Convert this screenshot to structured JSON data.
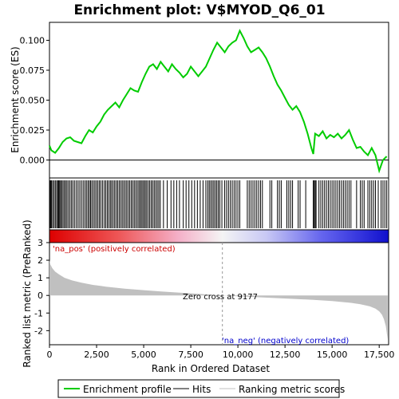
{
  "chart_data": {
    "type": "line",
    "title": "Enrichment plot: V$MYOD_Q6_01",
    "xlabel": "Rank in Ordered Dataset",
    "xlim": [
      0,
      18000
    ],
    "x_ticks": [
      0,
      2500,
      5000,
      7500,
      10000,
      12500,
      15000,
      17500
    ],
    "x_tick_labels": [
      "0",
      "2,500",
      "5,000",
      "7,500",
      "10,000",
      "12,500",
      "15,000",
      "17,500"
    ],
    "es_panel": {
      "ylabel": "Enrichment score (ES)",
      "ylim": [
        -0.015,
        0.115
      ],
      "y_ticks": [
        0.0,
        0.025,
        0.05,
        0.075,
        0.1
      ],
      "y_tick_labels": [
        "0.000",
        "0.025",
        "0.050",
        "0.075",
        "0.100"
      ],
      "series": [
        {
          "name": "Enrichment profile",
          "color": "#00cc00",
          "x": [
            0,
            100,
            300,
            500,
            700,
            900,
            1100,
            1300,
            1500,
            1700,
            1900,
            2100,
            2300,
            2500,
            2700,
            2900,
            3100,
            3300,
            3500,
            3700,
            3900,
            4100,
            4300,
            4500,
            4700,
            4900,
            5100,
            5300,
            5500,
            5700,
            5900,
            6100,
            6300,
            6500,
            6700,
            6900,
            7100,
            7300,
            7500,
            7700,
            7900,
            8100,
            8300,
            8500,
            8700,
            8900,
            9100,
            9300,
            9500,
            9700,
            9900,
            10100,
            10300,
            10500,
            10700,
            10900,
            11100,
            11300,
            11500,
            11700,
            11900,
            12100,
            12300,
            12500,
            12700,
            12900,
            13100,
            13300,
            13500,
            13700,
            13900,
            14000,
            14100,
            14300,
            14500,
            14700,
            14900,
            15100,
            15300,
            15500,
            15700,
            15900,
            16100,
            16300,
            16500,
            16700,
            16900,
            17100,
            17300,
            17500,
            17700,
            17900
          ],
          "y": [
            0.012,
            0.008,
            0.006,
            0.01,
            0.015,
            0.018,
            0.019,
            0.016,
            0.015,
            0.014,
            0.02,
            0.025,
            0.023,
            0.028,
            0.032,
            0.038,
            0.042,
            0.045,
            0.048,
            0.044,
            0.05,
            0.055,
            0.06,
            0.058,
            0.057,
            0.065,
            0.072,
            0.078,
            0.08,
            0.076,
            0.082,
            0.078,
            0.074,
            0.08,
            0.076,
            0.073,
            0.069,
            0.072,
            0.078,
            0.074,
            0.07,
            0.074,
            0.078,
            0.085,
            0.092,
            0.098,
            0.094,
            0.09,
            0.095,
            0.098,
            0.1,
            0.108,
            0.102,
            0.095,
            0.09,
            0.092,
            0.094,
            0.09,
            0.085,
            0.078,
            0.07,
            0.063,
            0.058,
            0.052,
            0.046,
            0.042,
            0.045,
            0.04,
            0.032,
            0.022,
            0.01,
            0.005,
            0.022,
            0.02,
            0.024,
            0.018,
            0.021,
            0.019,
            0.022,
            0.018,
            0.021,
            0.025,
            0.017,
            0.01,
            0.011,
            0.007,
            0.004,
            0.01,
            0.004,
            -0.009,
            0.0,
            0.003
          ]
        }
      ]
    },
    "hits": {
      "name": "Hits",
      "color": "#000000",
      "positions": [
        20,
        60,
        110,
        170,
        240,
        310,
        380,
        440,
        490,
        540,
        590,
        650,
        720,
        790,
        860,
        930,
        1010,
        1090,
        1170,
        1250,
        1340,
        1430,
        1520,
        1610,
        1700,
        1790,
        1880,
        1960,
        2040,
        2110,
        2180,
        2250,
        2330,
        2410,
        2490,
        2570,
        2650,
        2730,
        2820,
        2910,
        2990,
        3070,
        3150,
        3230,
        3300,
        3380,
        3460,
        3540,
        3620,
        3700,
        3780,
        3860,
        3940,
        4020,
        4100,
        4180,
        4260,
        4340,
        4420,
        4500,
        4580,
        4660,
        4740,
        4810,
        4880,
        4950,
        5020,
        5090,
        5160,
        5240,
        5320,
        5400,
        5480,
        5560,
        5640,
        5720,
        5800,
        5880,
        6050,
        6250,
        6450,
        6600,
        6750,
        6900,
        7100,
        7250,
        7400,
        7550,
        7700,
        7850,
        8000,
        8150,
        8300,
        8400,
        8480,
        8560,
        8640,
        8720,
        8800,
        8880,
        8960,
        9040,
        9150,
        9300,
        9400,
        9500,
        9600,
        9700,
        9800,
        9900,
        10000,
        10100,
        10500,
        10600,
        10700,
        10800,
        10900,
        11000,
        11100,
        11200,
        11300,
        11700,
        11800,
        12100,
        12200,
        12300,
        12600,
        12700,
        12800,
        12900,
        13200,
        13300,
        13600,
        14000,
        14050,
        14100,
        14150,
        14300,
        14400,
        14500,
        14600,
        14700,
        14800,
        14900,
        15000,
        15100,
        15200,
        15300,
        15400,
        15500,
        15600,
        15700,
        15800,
        15900,
        16000,
        16300,
        16500,
        16600,
        16700,
        16900,
        17000,
        17100,
        17200,
        17300,
        17450,
        17600,
        17700,
        17800,
        17900
      ]
    },
    "ranked_metric_panel": {
      "ylabel": "Ranked list metric (PreRanked)",
      "ylim": [
        -2.8,
        3.0
      ],
      "y_ticks": [
        -2,
        -1,
        0,
        1,
        2,
        3
      ],
      "y_tick_labels": [
        "-2",
        "-1",
        "0",
        "1",
        "2",
        "3"
      ],
      "series": [
        {
          "name": "Ranking metric scores",
          "color": "#c0c0c0",
          "x": [
            0,
            50,
            150,
            300,
            500,
            800,
            1200,
            1700,
            2300,
            3000,
            4000,
            5000,
            6000,
            7000,
            8000,
            9177,
            10000,
            11000,
            12000,
            13000,
            14000,
            15000,
            16000,
            16500,
            17000,
            17300,
            17500,
            17650,
            17750,
            17850,
            17950
          ],
          "y": [
            2.0,
            1.75,
            1.55,
            1.35,
            1.2,
            1.0,
            0.85,
            0.72,
            0.6,
            0.5,
            0.38,
            0.3,
            0.22,
            0.15,
            0.08,
            0.0,
            -0.05,
            -0.1,
            -0.15,
            -0.2,
            -0.25,
            -0.32,
            -0.42,
            -0.5,
            -0.62,
            -0.75,
            -0.9,
            -1.1,
            -1.35,
            -1.75,
            -2.5
          ]
        }
      ],
      "zero_cross_rank": 9177,
      "zero_cross_label": "Zero cross at 9177",
      "pos_label": "'na_pos' (positively correlated)",
      "neg_label": "'na_neg' (negatively correlated)",
      "pos_color": "#cc0000",
      "neg_color": "#0000cc"
    },
    "legend": {
      "placement": "bottom",
      "entries": [
        {
          "label": "Enrichment profile",
          "color": "#00cc00"
        },
        {
          "label": "Hits",
          "color": "#000000"
        },
        {
          "label": "Ranking metric scores",
          "color": "#c0c0c0"
        }
      ]
    }
  }
}
